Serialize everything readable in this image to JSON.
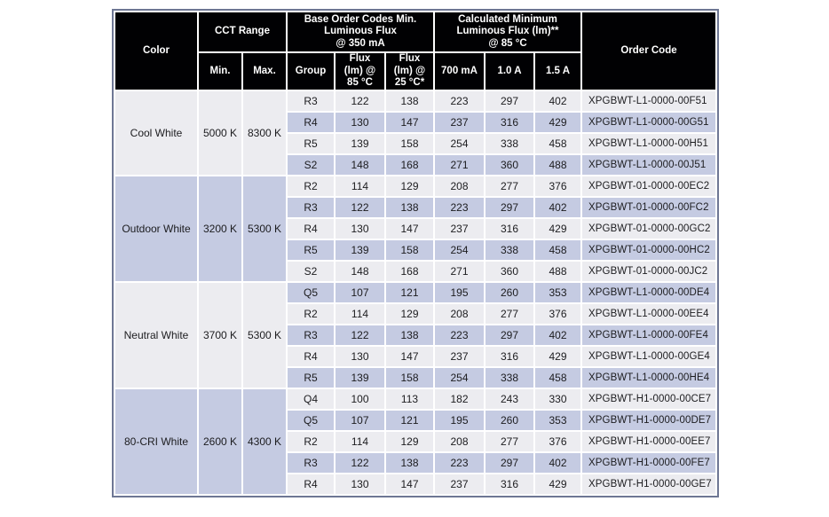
{
  "colors": {
    "header_bg": "#010103",
    "header_text": "#ffffff",
    "stripe_light": "#ececf0",
    "stripe_lavender": "#c5cbe2",
    "outer_border": "#6e7794",
    "data_text": "#1c1c1f"
  },
  "header": {
    "color": "Color",
    "cct_range": "CCT Range",
    "base_order_codes": "Base Order Codes Min.\nLuminous Flux\n@ 350 mA",
    "calculated_min": "Calculated Minimum\nLuminous Flux (lm)**\n@ 85 °C",
    "order_code": "Order Code",
    "min": "Min.",
    "max": "Max.",
    "group": "Group",
    "flux_85": "Flux\n(lm) @\n85 °C",
    "flux_25": "Flux\n(lm) @\n25 °C*",
    "i700": "700 mA",
    "i10": "1.0 A",
    "i15": "1.5 A"
  },
  "sections": [
    {
      "color": "Cool White",
      "min": "5000 K",
      "max": "8300 K",
      "rows": [
        {
          "group": "R3",
          "f85": "122",
          "f25": "138",
          "a700": "223",
          "a10": "297",
          "a15": "402",
          "code": "XPGBWT-L1-0000-00F51"
        },
        {
          "group": "R4",
          "f85": "130",
          "f25": "147",
          "a700": "237",
          "a10": "316",
          "a15": "429",
          "code": "XPGBWT-L1-0000-00G51"
        },
        {
          "group": "R5",
          "f85": "139",
          "f25": "158",
          "a700": "254",
          "a10": "338",
          "a15": "458",
          "code": "XPGBWT-L1-0000-00H51"
        },
        {
          "group": "S2",
          "f85": "148",
          "f25": "168",
          "a700": "271",
          "a10": "360",
          "a15": "488",
          "code": "XPGBWT-L1-0000-00J51"
        }
      ]
    },
    {
      "color": "Outdoor White",
      "min": "3200 K",
      "max": "5300 K",
      "rows": [
        {
          "group": "R2",
          "f85": "114",
          "f25": "129",
          "a700": "208",
          "a10": "277",
          "a15": "376",
          "code": "XPGBWT-01-0000-00EC2"
        },
        {
          "group": "R3",
          "f85": "122",
          "f25": "138",
          "a700": "223",
          "a10": "297",
          "a15": "402",
          "code": "XPGBWT-01-0000-00FC2"
        },
        {
          "group": "R4",
          "f85": "130",
          "f25": "147",
          "a700": "237",
          "a10": "316",
          "a15": "429",
          "code": "XPGBWT-01-0000-00GC2"
        },
        {
          "group": "R5",
          "f85": "139",
          "f25": "158",
          "a700": "254",
          "a10": "338",
          "a15": "458",
          "code": "XPGBWT-01-0000-00HC2"
        },
        {
          "group": "S2",
          "f85": "148",
          "f25": "168",
          "a700": "271",
          "a10": "360",
          "a15": "488",
          "code": "XPGBWT-01-0000-00JC2"
        }
      ]
    },
    {
      "color": "Neutral White",
      "min": "3700 K",
      "max": "5300 K",
      "rows": [
        {
          "group": "Q5",
          "f85": "107",
          "f25": "121",
          "a700": "195",
          "a10": "260",
          "a15": "353",
          "code": "XPGBWT-L1-0000-00DE4"
        },
        {
          "group": "R2",
          "f85": "114",
          "f25": "129",
          "a700": "208",
          "a10": "277",
          "a15": "376",
          "code": "XPGBWT-L1-0000-00EE4"
        },
        {
          "group": "R3",
          "f85": "122",
          "f25": "138",
          "a700": "223",
          "a10": "297",
          "a15": "402",
          "code": "XPGBWT-L1-0000-00FE4"
        },
        {
          "group": "R4",
          "f85": "130",
          "f25": "147",
          "a700": "237",
          "a10": "316",
          "a15": "429",
          "code": "XPGBWT-L1-0000-00GE4"
        },
        {
          "group": "R5",
          "f85": "139",
          "f25": "158",
          "a700": "254",
          "a10": "338",
          "a15": "458",
          "code": "XPGBWT-L1-0000-00HE4"
        }
      ]
    },
    {
      "color": "80-CRI White",
      "min": "2600 K",
      "max": "4300 K",
      "rows": [
        {
          "group": "Q4",
          "f85": "100",
          "f25": "113",
          "a700": "182",
          "a10": "243",
          "a15": "330",
          "code": "XPGBWT-H1-0000-00CE7"
        },
        {
          "group": "Q5",
          "f85": "107",
          "f25": "121",
          "a700": "195",
          "a10": "260",
          "a15": "353",
          "code": "XPGBWT-H1-0000-00DE7"
        },
        {
          "group": "R2",
          "f85": "114",
          "f25": "129",
          "a700": "208",
          "a10": "277",
          "a15": "376",
          "code": "XPGBWT-H1-0000-00EE7"
        },
        {
          "group": "R3",
          "f85": "122",
          "f25": "138",
          "a700": "223",
          "a10": "297",
          "a15": "402",
          "code": "XPGBWT-H1-0000-00FE7"
        },
        {
          "group": "R4",
          "f85": "130",
          "f25": "147",
          "a700": "237",
          "a10": "316",
          "a15": "429",
          "code": "XPGBWT-H1-0000-00GE7"
        }
      ]
    }
  ]
}
